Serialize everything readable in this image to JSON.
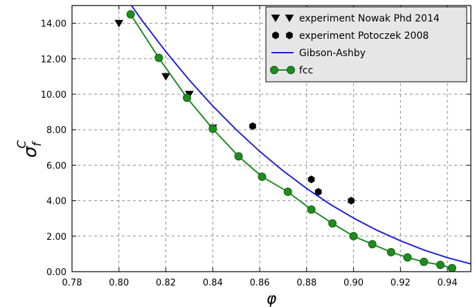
{
  "chart_data": {
    "type": "line",
    "xlabel": "φ",
    "ylabel": "σ",
    "ylabel_sub": "f",
    "ylabel_sup": "C",
    "xlim": [
      0.78,
      0.95
    ],
    "ylim": [
      0,
      15
    ],
    "x_ticks": [
      0.78,
      0.8,
      0.82,
      0.84,
      0.86,
      0.88,
      0.9,
      0.92,
      0.94
    ],
    "x_tick_labels": [
      "0.78",
      "0.80",
      "0.82",
      "0.84",
      "0.86",
      "0.88",
      "0.90",
      "0.92",
      "0.94"
    ],
    "y_ticks": [
      0,
      2,
      4,
      6,
      8,
      10,
      12,
      14
    ],
    "y_tick_labels": [
      "0.00",
      "2.00",
      "4.00",
      "6.00",
      "8.00",
      "10.00",
      "12.00",
      "14.00"
    ],
    "grid": true,
    "legend_position": "top-right",
    "series": [
      {
        "name": "experiment Nowak Phd 2014",
        "kind": "scatter",
        "marker": "triangle-down",
        "color": "#000000",
        "x": [
          0.8,
          0.82,
          0.83,
          0.84
        ],
        "y": [
          14.0,
          11.0,
          10.0,
          8.1
        ]
      },
      {
        "name": "experiment Potoczek 2008",
        "kind": "scatter",
        "marker": "hexagon",
        "color": "#000000",
        "x": [
          0.857,
          0.882,
          0.885,
          0.899
        ],
        "y": [
          8.2,
          5.2,
          4.5,
          4.0
        ]
      },
      {
        "name": "Gibson-Ashby",
        "kind": "line",
        "color": "#1f1fd8",
        "x": [
          0.8,
          0.81,
          0.82,
          0.83,
          0.84,
          0.85,
          0.86,
          0.87,
          0.88,
          0.89,
          0.9,
          0.91,
          0.92,
          0.93,
          0.94,
          0.95
        ],
        "y": [
          16.0,
          14.13,
          12.4,
          10.8,
          9.34,
          8.0,
          6.78,
          5.68,
          4.69,
          3.8,
          3.02,
          2.33,
          1.74,
          1.22,
          0.79,
          0.44
        ]
      },
      {
        "name": "fcc",
        "kind": "line-marker",
        "marker": "circle",
        "color": "#1e8c1e",
        "x": [
          0.805,
          0.817,
          0.829,
          0.84,
          0.851,
          0.861,
          0.872,
          0.882,
          0.891,
          0.9,
          0.908,
          0.916,
          0.923,
          0.93,
          0.937,
          0.942
        ],
        "y": [
          14.5,
          12.05,
          9.8,
          8.05,
          6.5,
          5.35,
          4.5,
          3.5,
          2.72,
          2.0,
          1.55,
          1.1,
          0.8,
          0.55,
          0.38,
          0.2
        ]
      }
    ]
  }
}
